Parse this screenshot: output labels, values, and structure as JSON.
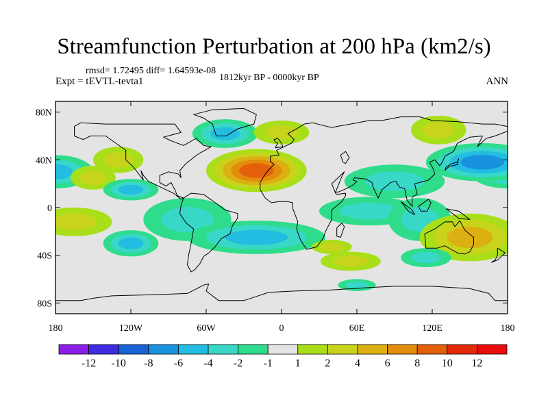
{
  "figure": {
    "title": "Streamfunction Perturbation at 200 hPa (km2/s)",
    "stats_text": "rmsd= 1.72495 diff= 1.64593e-08",
    "period_text": "1812kyr BP - 0000kyr BP",
    "experiment_text": "Expt = tEVTL-tevta1",
    "season": "ANN"
  },
  "colors": {
    "background": "#ffffff",
    "ocean": "#e4e4e4",
    "coastline": "#000000"
  },
  "chart_data": {
    "type": "heatmap",
    "title": "Streamfunction Perturbation at 200 hPa (km2/s)",
    "variable": "streamfunction perturbation",
    "units": "km2/s",
    "level": "200 hPa",
    "projection": "cylindrical equidistant",
    "xlim": [
      -180,
      180
    ],
    "ylim": [
      -90,
      90
    ],
    "x_tick_values": [
      -180,
      -120,
      -60,
      0,
      60,
      120,
      180
    ],
    "x_tick_labels": [
      "180",
      "120W",
      "60W",
      "0",
      "60E",
      "120E",
      "180"
    ],
    "y_tick_values": [
      80,
      40,
      0,
      -40,
      -80
    ],
    "y_tick_labels": [
      "80N",
      "40N",
      "0",
      "40S",
      "80S"
    ],
    "colorbar": {
      "labels": [
        "-12",
        "-10",
        "-8",
        "-6",
        "-4",
        "-2",
        "-1",
        "1",
        "2",
        "4",
        "6",
        "8",
        "10",
        "12"
      ],
      "colors": [
        "#8a1ee8",
        "#3d2ce0",
        "#1a62d8",
        "#1891df",
        "#22bde0",
        "#38d7c8",
        "#2edc8c",
        "#e4e4e4",
        "#a8df18",
        "#c8d41c",
        "#dcb012",
        "#e28c0c",
        "#e4600a",
        "#e02a0a",
        "#e80c0c"
      ]
    },
    "anomaly_features": [
      {
        "lon": -180,
        "lat": 30,
        "value": -5
      },
      {
        "lon": -150,
        "lat": 25,
        "value": 2.5
      },
      {
        "lon": -130,
        "lat": 40,
        "value": 3
      },
      {
        "lon": -120,
        "lat": 15,
        "value": -4
      },
      {
        "lon": -165,
        "lat": -12,
        "value": 3
      },
      {
        "lon": -120,
        "lat": -30,
        "value": -4
      },
      {
        "lon": -45,
        "lat": 62,
        "value": -4
      },
      {
        "lon": 0,
        "lat": 63,
        "value": 2
      },
      {
        "lon": -75,
        "lat": -10,
        "value": -2
      },
      {
        "lon": -20,
        "lat": 31,
        "value": 9
      },
      {
        "lon": -20,
        "lat": -25,
        "value": -4
      },
      {
        "lon": 40,
        "lat": -33,
        "value": 2
      },
      {
        "lon": 55,
        "lat": -45,
        "value": 3
      },
      {
        "lon": 60,
        "lat": -65,
        "value": -2
      },
      {
        "lon": 70,
        "lat": -3,
        "value": -3
      },
      {
        "lon": 90,
        "lat": 22,
        "value": -3
      },
      {
        "lon": 110,
        "lat": -10,
        "value": -2
      },
      {
        "lon": 125,
        "lat": 65,
        "value": 2
      },
      {
        "lon": 160,
        "lat": 38,
        "value": -6
      },
      {
        "lon": 150,
        "lat": -25,
        "value": 4
      },
      {
        "lon": 115,
        "lat": -42,
        "value": -2
      }
    ]
  }
}
